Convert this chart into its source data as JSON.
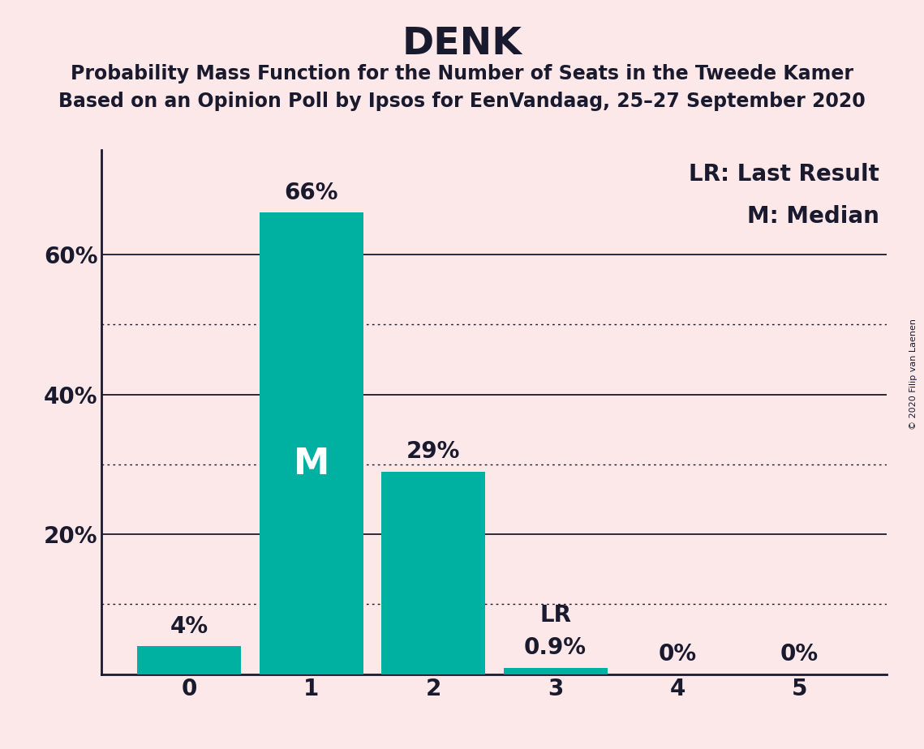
{
  "title": "DENK",
  "subtitle1": "Probability Mass Function for the Number of Seats in the Tweede Kamer",
  "subtitle2": "Based on an Opinion Poll by Ipsos for EenVandaag, 25–27 September 2020",
  "copyright_text": "© 2020 Filip van Laenen",
  "categories": [
    0,
    1,
    2,
    3,
    4,
    5
  ],
  "values": [
    4,
    66,
    29,
    0.9,
    0,
    0
  ],
  "bar_color": "#00b0a0",
  "background_color": "#fce8e8",
  "bar_labels": [
    "4%",
    "66%",
    "29%",
    "0.9%",
    "0%",
    "0%"
  ],
  "median_seat": 1,
  "last_result_seat": 3,
  "legend_lr": "LR: Last Result",
  "legend_m": "M: Median",
  "ylabel_ticks": [
    20,
    40,
    60
  ],
  "ylim": [
    0,
    75
  ],
  "title_fontsize": 34,
  "subtitle_fontsize": 17,
  "tick_fontsize": 20,
  "label_fontsize": 20,
  "bar_label_fontsize": 20,
  "median_label_fontsize": 32,
  "grid_color": "#1a1a2e",
  "axis_color": "#1a1a2e",
  "text_color": "#1a1a2e"
}
